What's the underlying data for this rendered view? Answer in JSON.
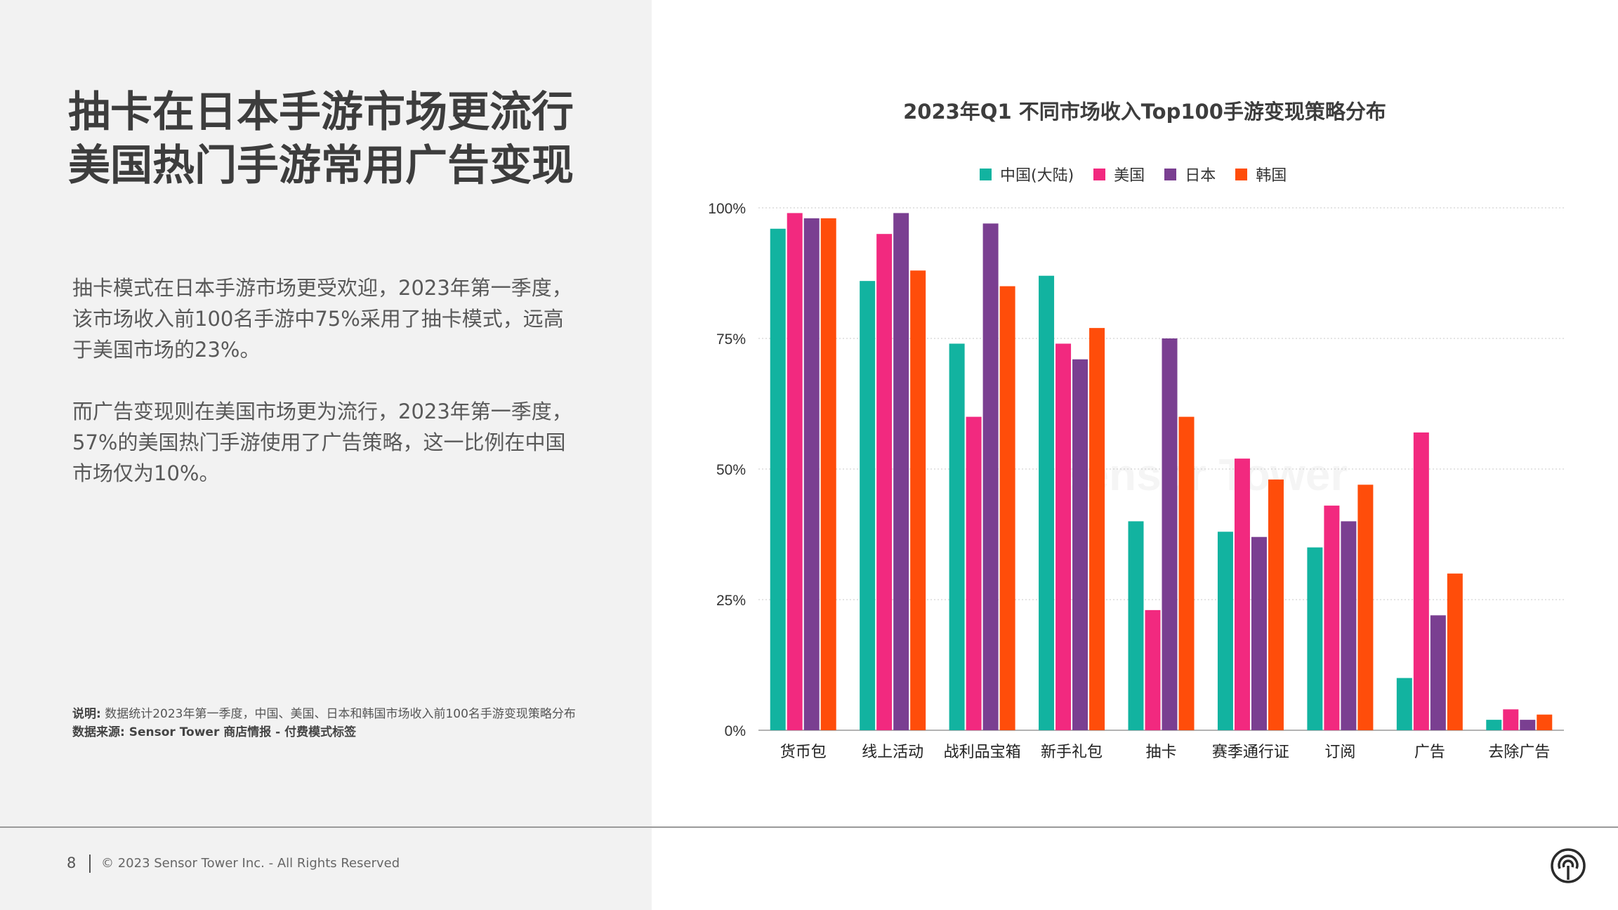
{
  "page": {
    "headline": [
      "抽卡在日本手游市场更流行",
      "美国热门手游常用广告变现"
    ],
    "paragraph1": "抽卡模式在日本手游市场更受欢迎，2023年第一季度，该市场收入前100名手游中75%采用了抽卡模式，远高于美国市场的23%。",
    "paragraph2": "而广告变现则在美国市场更为流行，2023年第一季度，57%的美国热门手游使用了广告策略，这一比例在中国市场仅为10%。",
    "note_label": "说明:",
    "note_text": "数据统计2023年第一季度，中国、美国、日本和韩国市场收入前100名手游变现策略分布",
    "source": "数据来源: Sensor Tower 商店情报 - 付费模式标签",
    "page_number": "8",
    "copyright": "© 2023 Sensor Tower Inc. - All Rights Reserved",
    "logo_icon": "sensor-tower-logo-icon",
    "watermark": "Sensor Tower"
  },
  "chart_data": {
    "type": "bar",
    "title": "2023年Q1 不同市场收入Top100手游变现策略分布",
    "categories": [
      "货币包",
      "线上活动",
      "战利品宝箱",
      "新手礼包",
      "抽卡",
      "赛季通行证",
      "订阅",
      "广告",
      "去除广告"
    ],
    "series": [
      {
        "name": "中国(大陆)",
        "color": "#12b3a0",
        "values": [
          96,
          86,
          74,
          87,
          40,
          38,
          35,
          10,
          2
        ]
      },
      {
        "name": "美国",
        "color": "#f2297f",
        "values": [
          99,
          95,
          60,
          74,
          23,
          52,
          43,
          57,
          4
        ]
      },
      {
        "name": "日本",
        "color": "#7a3f91",
        "values": [
          98,
          99,
          97,
          71,
          75,
          37,
          40,
          22,
          2
        ]
      },
      {
        "name": "韩国",
        "color": "#ff4d0a",
        "values": [
          98,
          88,
          85,
          77,
          60,
          48,
          47,
          30,
          3
        ]
      }
    ],
    "yticks": [
      "0%",
      "25%",
      "50%",
      "75%",
      "100%"
    ],
    "ylim": [
      0,
      100
    ],
    "legend_position": "top",
    "grid": "horizontal dotted"
  }
}
